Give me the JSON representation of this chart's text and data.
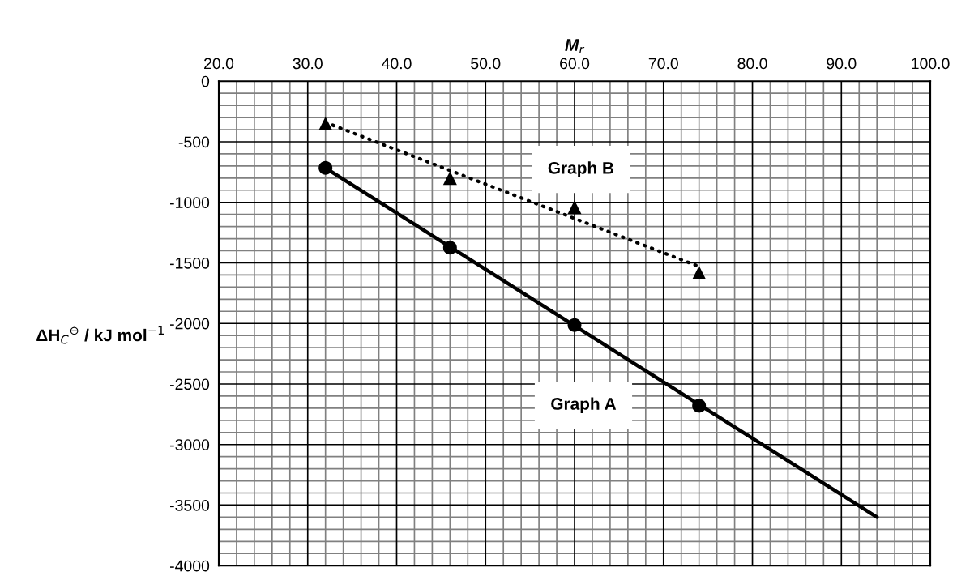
{
  "chart_data": {
    "type": "scatter",
    "xlabel": "M$_{r}$",
    "ylabel": "ΔH$_{C}$$^{⊖}$ / kJ mol$^{−1}$",
    "xlim": [
      20,
      100
    ],
    "ylim": [
      -4000,
      0
    ],
    "xticks": [
      {
        "value": 20,
        "label": "20.0"
      },
      {
        "value": 30,
        "label": "30.0"
      },
      {
        "value": 40,
        "label": "40.0"
      },
      {
        "value": 50,
        "label": "50.0"
      },
      {
        "value": 60,
        "label": "60.0"
      },
      {
        "value": 70,
        "label": "70.0"
      },
      {
        "value": 80,
        "label": "80.0"
      },
      {
        "value": 90,
        "label": "90.0"
      },
      {
        "value": 100,
        "label": "100.0"
      }
    ],
    "yticks": [
      0,
      -500,
      -1000,
      -1500,
      -2000,
      -2500,
      -3000,
      -3500,
      -4000
    ],
    "grid": true,
    "series": [
      {
        "color": "#000000",
        "marker": "circle",
        "x": [
          32,
          46,
          60,
          74
        ],
        "values": [
          -716,
          -1374,
          -2013,
          -2680
        ]
      },
      {
        "type": "line",
        "color": "#000000",
        "line_style": "solid",
        "x": [
          32,
          94
        ],
        "values": [
          -716,
          -3600
        ]
      },
      {
        "color": "#000000",
        "marker": "triangle",
        "x": [
          32,
          46,
          60,
          74
        ],
        "values": [
          -350,
          -800,
          -1040,
          -1580
        ]
      },
      {
        "type": "line",
        "color": "#000000",
        "line_style": "dotted",
        "x": [
          32,
          74
        ],
        "values": [
          -340,
          -1530
        ]
      }
    ],
    "annotations": [
      "Graph B",
      "Graph A"
    ]
  }
}
